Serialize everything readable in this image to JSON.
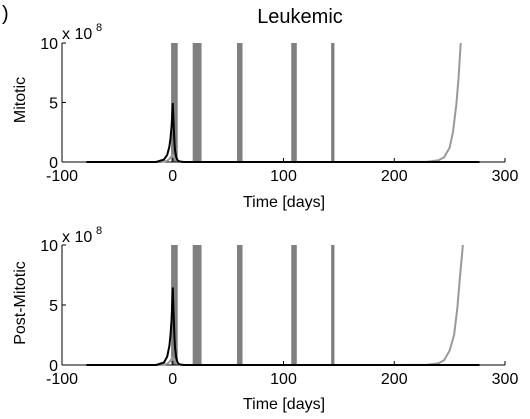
{
  "figure": {
    "panel_letter": ")",
    "title": "Leukemic"
  },
  "chart_data": [
    {
      "type": "line",
      "title": "Leukemic",
      "xlabel": "Time [days]",
      "ylabel": "Mitotic",
      "y_multiplier_label": "x 10",
      "y_multiplier_exponent": "8",
      "xlim": [
        -100,
        300
      ],
      "ylim": [
        0,
        10
      ],
      "x_ticks": [
        -100,
        0,
        100,
        200,
        300
      ],
      "y_ticks": [
        0,
        5,
        10
      ],
      "grid": false,
      "treatment_bars": [
        {
          "start": -1.5,
          "end": 4.5,
          "color": "#808080"
        },
        {
          "start": 18,
          "end": 26,
          "color": "#808080"
        },
        {
          "start": 58,
          "end": 63,
          "color": "#808080"
        },
        {
          "start": 107,
          "end": 112,
          "color": "#808080"
        },
        {
          "start": 143,
          "end": 146,
          "color": "#808080"
        }
      ],
      "series": [
        {
          "color": "#000000",
          "x": [
            -78,
            -15,
            -8,
            -5,
            -3,
            -2,
            -1,
            0,
            0.5,
            1,
            1.5,
            2,
            3,
            4,
            5,
            7,
            10,
            15,
            20,
            277
          ],
          "y": [
            0,
            0,
            0.2,
            0.6,
            1.3,
            2.0,
            3.0,
            4.9,
            3.8,
            2.7,
            1.7,
            1.0,
            0.45,
            0.2,
            0.08,
            0.02,
            0,
            0,
            0,
            0
          ]
        },
        {
          "color": "#999999",
          "x": [
            -78,
            -10,
            -5,
            -3,
            -1,
            0,
            1,
            2,
            4,
            10,
            30,
            200,
            230,
            240,
            245,
            250,
            253,
            256,
            258,
            260
          ],
          "y": [
            0,
            0,
            0.1,
            0.25,
            0.5,
            0.6,
            0.5,
            0.3,
            0.1,
            0,
            0,
            0,
            0.02,
            0.15,
            0.4,
            1.2,
            2.5,
            4.8,
            7.0,
            10
          ]
        }
      ]
    },
    {
      "type": "line",
      "xlabel": "Time [days]",
      "ylabel": "Post-Mitotic",
      "y_multiplier_label": "x 10",
      "y_multiplier_exponent": "8",
      "xlim": [
        -100,
        300
      ],
      "ylim": [
        0,
        10
      ],
      "x_ticks": [
        -100,
        0,
        100,
        200,
        300
      ],
      "y_ticks": [
        0,
        5,
        10
      ],
      "grid": false,
      "treatment_bars": [
        {
          "start": -1.5,
          "end": 4.5,
          "color": "#808080"
        },
        {
          "start": 18,
          "end": 26,
          "color": "#808080"
        },
        {
          "start": 58,
          "end": 63,
          "color": "#808080"
        },
        {
          "start": 107,
          "end": 112,
          "color": "#808080"
        },
        {
          "start": 143,
          "end": 146,
          "color": "#808080"
        }
      ],
      "series": [
        {
          "color": "#000000",
          "x": [
            -78,
            -15,
            -8,
            -5,
            -3,
            -2,
            -1,
            0,
            0.5,
            1,
            1.5,
            2,
            3,
            4,
            5,
            7,
            10,
            15,
            20,
            277
          ],
          "y": [
            0,
            0,
            0.2,
            0.7,
            1.6,
            2.5,
            3.8,
            6.4,
            5.0,
            3.6,
            2.4,
            1.5,
            0.7,
            0.3,
            0.12,
            0.03,
            0,
            0,
            0,
            0
          ]
        },
        {
          "color": "#999999",
          "x": [
            -78,
            -10,
            -5,
            -3,
            -1,
            0,
            1,
            2,
            4,
            10,
            30,
            200,
            230,
            240,
            245,
            250,
            254,
            257,
            259,
            262
          ],
          "y": [
            0,
            0,
            0.1,
            0.25,
            0.5,
            0.6,
            0.5,
            0.3,
            0.1,
            0,
            0,
            0,
            0.02,
            0.15,
            0.4,
            1.2,
            2.5,
            4.8,
            7.0,
            10
          ]
        }
      ]
    }
  ]
}
